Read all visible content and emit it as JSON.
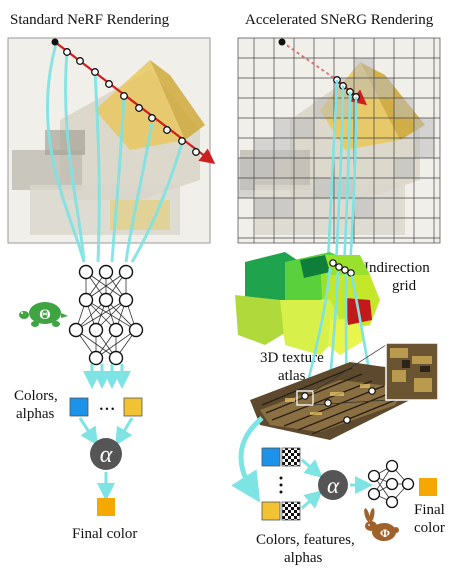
{
  "titles": {
    "left": "Standard NeRF Rendering",
    "right": "Accelerated SNeRG Rendering"
  },
  "labels": {
    "indirection_grid_line1": "Indirection",
    "indirection_grid_line2": "grid",
    "texture_atlas_line1": "3D texture",
    "texture_atlas_line2": "atlas",
    "colors_alphas_line1": "Colors,",
    "colors_alphas_line2": "alphas",
    "final_color_left": "Final color",
    "final_color_right_line1": "Final",
    "final_color_right_line2": "color",
    "colors_features_alphas_line1": "Colors, features,",
    "colors_features_alphas_line2": "alphas",
    "ellipsis_h": "• • •",
    "ellipsis_v": "•\n•\n•"
  },
  "symbols": {
    "alpha": "α",
    "theta": "Θ",
    "phi": "Φ"
  },
  "colors": {
    "arrow_cyan": "#7de3e3",
    "ray_red": "#cc1f1f",
    "blue_sample": "#1c93e8",
    "yellow_sample": "#f1c232",
    "orange_final": "#f5a800",
    "turtle_green": "#3fa441",
    "rabbit_brown": "#a0622b"
  }
}
